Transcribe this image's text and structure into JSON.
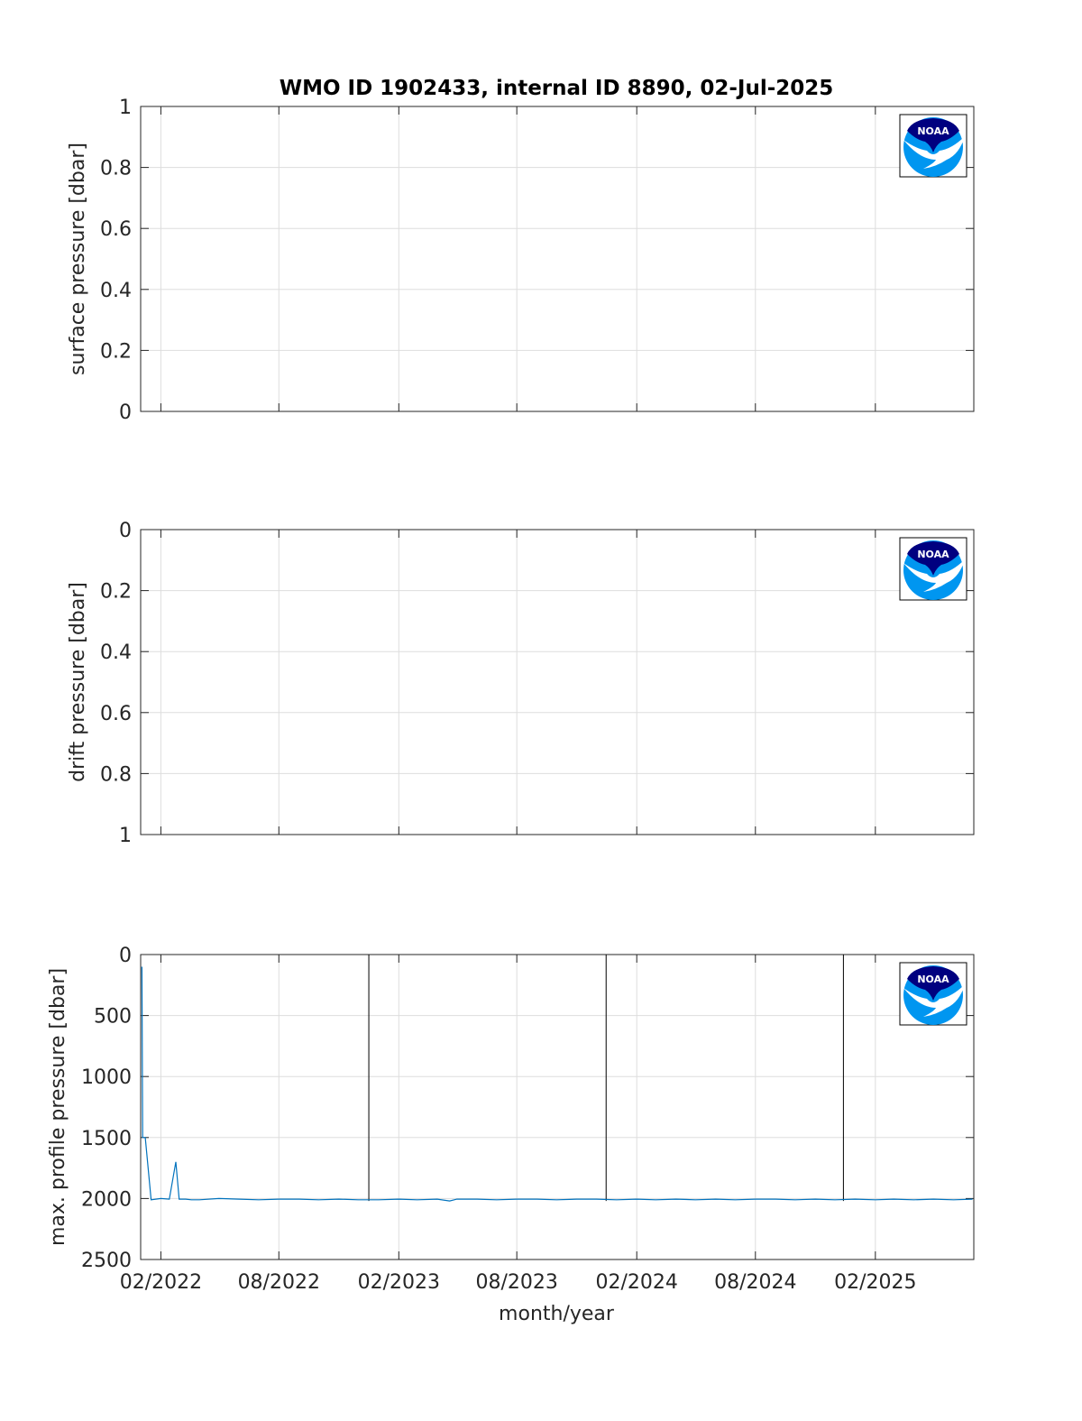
{
  "title": "WMO ID 1902433, internal ID 8890, 02-Jul-2025",
  "xlabel": "month/year",
  "x_tick_labels": [
    "02/2022",
    "08/2022",
    "02/2023",
    "08/2023",
    "02/2024",
    "08/2024",
    "02/2025"
  ],
  "x_tick_dates": [
    "2022-02-01",
    "2022-08-01",
    "2023-02-01",
    "2023-08-01",
    "2024-02-01",
    "2024-08-01",
    "2025-02-01"
  ],
  "colors": {
    "series": "#0072bd",
    "marker_line": "#000000",
    "noaa_dark": "#000080",
    "noaa_light": "#0096f0"
  },
  "logo": "noaa-logo",
  "chart_data": [
    {
      "type": "line",
      "ylabel": "surface pressure [dbar]",
      "ylim": [
        0,
        1
      ],
      "y_reversed": false,
      "y_tick_labels": [
        "0",
        "0.2",
        "0.4",
        "0.6",
        "0.8",
        "1"
      ],
      "y_ticks": [
        0,
        0.2,
        0.4,
        0.6,
        0.8,
        1
      ],
      "grid": true,
      "x": [],
      "y": []
    },
    {
      "type": "line",
      "ylabel": "drift pressure [dbar]",
      "ylim": [
        0,
        1
      ],
      "y_reversed": true,
      "y_tick_labels": [
        "0",
        "0.2",
        "0.4",
        "0.6",
        "0.8",
        "1"
      ],
      "y_ticks": [
        0,
        0.2,
        0.4,
        0.6,
        0.8,
        1
      ],
      "grid": true,
      "x": [],
      "y": []
    },
    {
      "type": "line",
      "ylabel": "max. profile pressure [dbar]",
      "ylim": [
        0,
        2500
      ],
      "y_reversed": true,
      "y_tick_labels": [
        "0",
        "500",
        "1000",
        "1500",
        "2000",
        "2500"
      ],
      "y_ticks": [
        0,
        500,
        1000,
        1500,
        2000,
        2500
      ],
      "grid": true,
      "x": [
        "2022-01-03",
        "2022-01-04",
        "2022-01-05",
        "2022-01-08",
        "2022-01-17",
        "2022-02-01",
        "2022-02-14",
        "2022-02-24",
        "2022-03-01",
        "2022-03-11",
        "2022-03-20",
        "2022-04-01",
        "2022-05-01",
        "2022-06-01",
        "2022-07-01",
        "2022-08-01",
        "2022-09-01",
        "2022-10-01",
        "2022-11-01",
        "2022-12-01",
        "2023-01-01",
        "2023-02-01",
        "2023-03-01",
        "2023-04-01",
        "2023-04-20",
        "2023-05-01",
        "2023-06-01",
        "2023-07-01",
        "2023-08-01",
        "2023-09-01",
        "2023-10-01",
        "2023-11-01",
        "2023-12-01",
        "2024-01-01",
        "2024-02-01",
        "2024-03-01",
        "2024-04-01",
        "2024-05-01",
        "2024-06-01",
        "2024-07-01",
        "2024-08-01",
        "2024-09-01",
        "2024-10-01",
        "2024-11-01",
        "2024-12-01",
        "2025-01-01",
        "2025-02-01",
        "2025-03-01",
        "2025-04-01",
        "2025-05-01",
        "2025-06-01",
        "2025-06-30"
      ],
      "y": [
        100,
        1500,
        1500,
        1500,
        2010,
        2000,
        2005,
        1700,
        2005,
        2005,
        2010,
        2010,
        2000,
        2005,
        2010,
        2005,
        2005,
        2010,
        2005,
        2010,
        2010,
        2005,
        2010,
        2005,
        2020,
        2005,
        2005,
        2010,
        2005,
        2005,
        2010,
        2005,
        2005,
        2010,
        2005,
        2010,
        2005,
        2010,
        2005,
        2010,
        2005,
        2005,
        2010,
        2005,
        2010,
        2005,
        2010,
        2005,
        2010,
        2005,
        2010,
        2005
      ],
      "vertical_lines": [
        {
          "x": "2022-12-17",
          "y_from": 0,
          "y_to": 2020
        },
        {
          "x": "2023-12-16",
          "y_from": 0,
          "y_to": 2020
        },
        {
          "x": "2024-12-14",
          "y_from": 0,
          "y_to": 2020
        }
      ]
    }
  ]
}
